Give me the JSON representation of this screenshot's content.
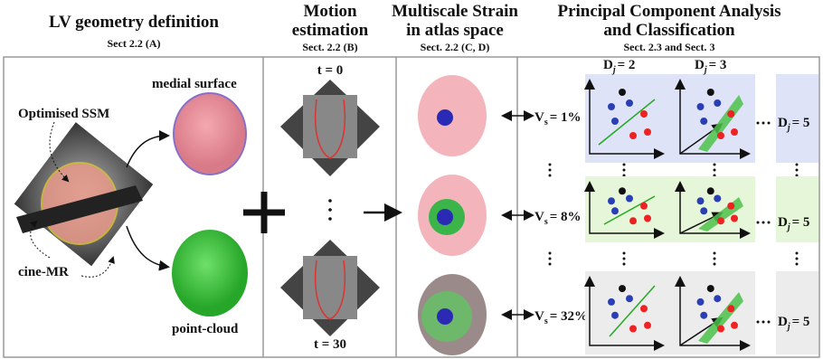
{
  "columns": [
    {
      "title": [
        "LV geometry definition"
      ],
      "section": "Sect 2.2 (A)"
    },
    {
      "title": [
        "Motion",
        "estimation"
      ],
      "section": "Sect. 2.2 (B)"
    },
    {
      "title": [
        "Multiscale Strain",
        "in atlas space"
      ],
      "section": "Sect. 2.2 (C, D)"
    },
    {
      "title": [
        "Principal Component Analysis",
        "and Classification"
      ],
      "section": "Sect. 2.3 and Sect. 3"
    }
  ],
  "labels": {
    "medial_surface": "medial surface",
    "optimised_ssm": "Optimised SSM",
    "cine_mr": "cine-MR",
    "point_cloud": "point-cloud",
    "t_start": "t = 0",
    "t_end": "t = 30"
  },
  "rows": [
    {
      "v": "V",
      "v_sub": "s",
      "v_value": "= 1%",
      "dims": [
        {
          "d": "D",
          "sub": "j",
          "value": "= 2"
        },
        {
          "d": "D",
          "sub": "j",
          "value": "= 3"
        },
        {
          "d": "D",
          "sub": "j",
          "value": "= 5"
        }
      ]
    },
    {
      "v": "V",
      "v_sub": "s",
      "v_value": "= 8%",
      "dims": [
        {
          "d": "D",
          "sub": "j",
          "value": "= 5"
        }
      ]
    },
    {
      "v": "V",
      "v_sub": "s",
      "v_value": "= 32%",
      "dims": [
        {
          "d": "D",
          "sub": "j",
          "value": "= 5"
        }
      ]
    }
  ]
}
